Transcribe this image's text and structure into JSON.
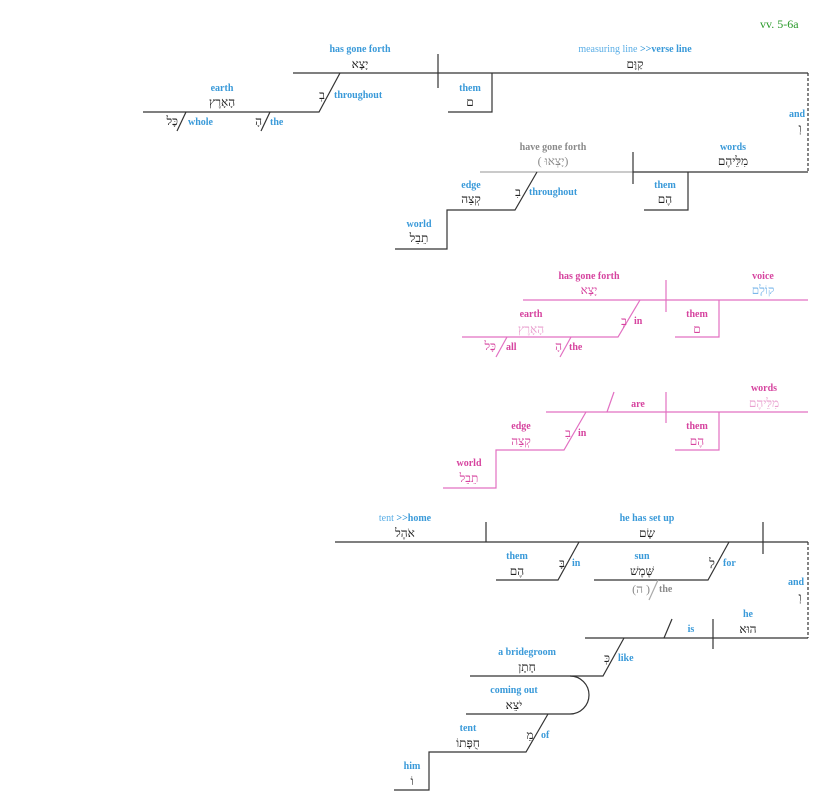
{
  "reference": "vv. 5-6a",
  "colors": {
    "label": "#3a9ad9",
    "pink": "#d6449f",
    "line": "#333333",
    "reference": "#2a9a2a"
  },
  "d1": {
    "verb_en": "has gone forth",
    "verb_he": "יָצָא",
    "subj_en_a": "measuring line ",
    "subj_en_b": ">>verse line",
    "subj_he": "קַוָּם",
    "them_en": "them",
    "them_he": "ם",
    "earth_en": "earth",
    "earth_he": "הָאָרֶץ",
    "prep_he": "בְ",
    "prep_en": "throughout",
    "whole_he": "כָּל",
    "whole_en": "whole",
    "the_he": "הָ",
    "the_en": "the",
    "and_en": "and",
    "and_he": "וְ",
    "verb2_en": "have gone forth",
    "verb2_he": "( יָצְאוּ)",
    "words_en": "words",
    "words_he": "מִלֵּיהֶם",
    "them2_en": "them",
    "them2_he": "הֶם",
    "prep2_he": "בִ",
    "prep2_en": "throughout",
    "edge_en": "edge",
    "edge_he": "קְצֵה",
    "world_en": "world",
    "world_he": "תֵבֵל"
  },
  "d2": {
    "verb_en": "has gone forth",
    "verb_he": "יָצָא",
    "subj_en": "voice",
    "subj_he": "קוֹלָם",
    "them_en": "them",
    "them_he": "ם",
    "earth_en": "earth",
    "earth_he": "הָאָרֶץ",
    "prep_he": "בְ",
    "prep_en": "in",
    "all_he": "כָּל",
    "all_en": "all",
    "the_he": "הָ",
    "the_en": "the",
    "are_en": "are",
    "words_en": "words",
    "words_he": "מִלֵּיהֶם",
    "them2_en": "them",
    "them2_he": "הֶם",
    "edge_en": "edge",
    "edge_he": "קְצֵה",
    "prep2_he": "בִ",
    "prep2_en": "in",
    "world_en": "world",
    "world_he": "תֵבֵל"
  },
  "d3": {
    "obj_en_a": "tent ",
    "obj_en_b": ">>home",
    "obj_he": "אֹהֶל",
    "verb_en": "he has set up",
    "verb_he": "שָׂם",
    "them_en": "them",
    "them_he": "הֶם",
    "in_he": "בָּ",
    "in_en": "in",
    "sun_en": "sun",
    "sun_he": "שֶּׁמֶשׁ",
    "for_he": "לַ",
    "for_en": "for",
    "the_he": "(ה )",
    "the_en": "the",
    "and_en": "and",
    "and_he": "וְ",
    "is_en": "is",
    "he_en": "he",
    "he_he": "הוּא",
    "like_he": "כְּ",
    "like_en": "like",
    "groom_en": "a bridegroom",
    "groom_he": "חָתָן",
    "coming_en": "coming out",
    "coming_he": "יֹצֵא",
    "tent_en": "tent",
    "tent_he": "חֻפָּתוֹ",
    "of_he": "מֵ",
    "of_en": "of",
    "him_en": "him",
    "him_he": "וֹ"
  }
}
